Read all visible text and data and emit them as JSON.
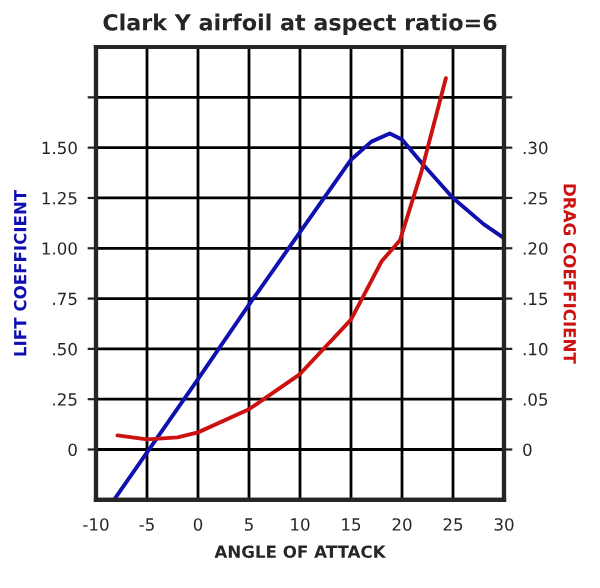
{
  "chart_data": {
    "type": "line",
    "title": "Clark Y airfoil at aspect ratio=6",
    "xlabel": "ANGLE OF ATTACK",
    "ylabel": "LIFT COEFFICIENT",
    "y2label": "DRAG COEFFICIENT",
    "series": [
      {
        "color": "#1010b0",
        "x": [
          -8.1,
          0,
          5,
          10,
          15,
          17,
          18.8,
          20,
          22,
          25,
          28,
          30
        ],
        "values": [
          -0.24,
          0.35,
          0.72,
          1.08,
          1.44,
          1.53,
          1.57,
          1.54,
          1.42,
          1.25,
          1.12,
          1.05
        ]
      },
      {
        "color": "#cc1111",
        "axis": "y2",
        "x": [
          -7.9,
          -5,
          -2,
          0,
          5,
          10,
          15,
          18,
          19.8,
          21.9,
          24.3
        ],
        "values": [
          0.014,
          0.01,
          0.012,
          0.017,
          0.04,
          0.075,
          0.129,
          0.187,
          0.208,
          0.276,
          0.369
        ]
      }
    ],
    "xlim": [
      -10,
      30
    ],
    "xticks": [
      -10,
      -5,
      0,
      5,
      10,
      15,
      20,
      25,
      30
    ],
    "ylim": [
      -0.25,
      2.0
    ],
    "yticks": [
      {
        "value": 0,
        "label": "0"
      },
      {
        "value": 0.25,
        "label": ".25"
      },
      {
        "value": 0.5,
        "label": ".50"
      },
      {
        "value": 0.75,
        "label": ".75"
      },
      {
        "value": 1.0,
        "label": "1.00"
      },
      {
        "value": 1.25,
        "label": "1.25"
      },
      {
        "value": 1.5,
        "label": "1.50"
      },
      {
        "value": 1.75,
        "label": null
      }
    ],
    "y2lim": [
      -0.05,
      0.4
    ],
    "y2ticks": [
      {
        "value": 0,
        "label": "0"
      },
      {
        "value": 0.05,
        "label": ".05"
      },
      {
        "value": 0.1,
        "label": ".10"
      },
      {
        "value": 0.15,
        "label": ".15"
      },
      {
        "value": 0.2,
        "label": ".20"
      },
      {
        "value": 0.25,
        "label": ".25"
      },
      {
        "value": 0.3,
        "label": ".30"
      },
      {
        "value": 0.35,
        "label": null
      }
    ],
    "grid": true,
    "marker": "none",
    "line_style": "solid"
  }
}
